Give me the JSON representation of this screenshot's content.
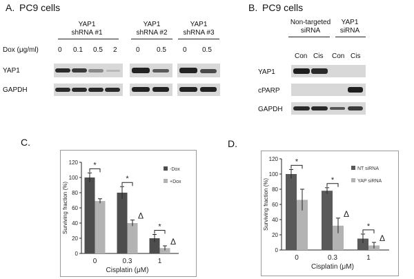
{
  "panelA": {
    "letter": "A.",
    "title": "PC9 cells",
    "groups": [
      "YAP1\nshRNA #1",
      "YAP1\nshRNA #2",
      "YAP1\nshRNA #3"
    ],
    "dox_label": "Dox (μg/ml)",
    "doses1": [
      "0",
      "0.1",
      "0.5",
      "2"
    ],
    "doses2": [
      "0",
      "0.5"
    ],
    "doses3": [
      "0",
      "0.5"
    ],
    "rows": [
      "YAP1",
      "GAPDH"
    ]
  },
  "panelB": {
    "letter": "B.",
    "title": "PC9 cells",
    "groups": [
      "Non-targeted\nsiRNA",
      "YAP1\nsiRNA"
    ],
    "lanes": [
      "Con",
      "Cis",
      "Con",
      "Cis"
    ],
    "rows": [
      "YAP1",
      "cPARP",
      "GAPDH"
    ]
  },
  "panelC": {
    "letter": "C."
  },
  "panelD": {
    "letter": "D."
  },
  "chart_data": [
    {
      "type": "bar",
      "categories": [
        "0",
        "0.3",
        "1"
      ],
      "series": [
        {
          "name": "-Dox",
          "values": [
            100,
            80,
            20
          ],
          "errors": [
            6,
            8,
            5
          ],
          "color": "#4d4d4d"
        },
        {
          "name": "+Dox",
          "values": [
            69,
            40,
            7
          ],
          "errors": [
            3,
            4,
            3
          ],
          "color": "#b3b3b3"
        }
      ],
      "xlabel": "Cisplatin (μM)",
      "ylabel": "Surviving fraction (%)",
      "ylim": [
        0,
        120
      ],
      "yticks": [
        "0",
        "20",
        "40",
        "60",
        "80",
        "100",
        "120"
      ],
      "significance": [
        "*",
        "*",
        "*"
      ],
      "delta": "Δ",
      "legend": "right"
    },
    {
      "type": "bar",
      "categories": [
        "0",
        "0.3",
        "1"
      ],
      "series": [
        {
          "name": "NT siRNA",
          "values": [
            100,
            78,
            15
          ],
          "errors": [
            6,
            4,
            6
          ],
          "color": "#595959"
        },
        {
          "name": "YAP siRNA",
          "values": [
            66,
            32,
            6
          ],
          "errors": [
            14,
            10,
            4
          ],
          "color": "#b3b3b3"
        }
      ],
      "xlabel": "Cisplatin (μM)",
      "ylabel": "Surviving fraction (%)",
      "ylim": [
        0,
        120
      ],
      "yticks": [
        "0",
        "20",
        "40",
        "60",
        "80",
        "100",
        "120"
      ],
      "significance": [
        "*",
        "*",
        "*"
      ],
      "delta": "Δ",
      "legend": "right"
    }
  ]
}
